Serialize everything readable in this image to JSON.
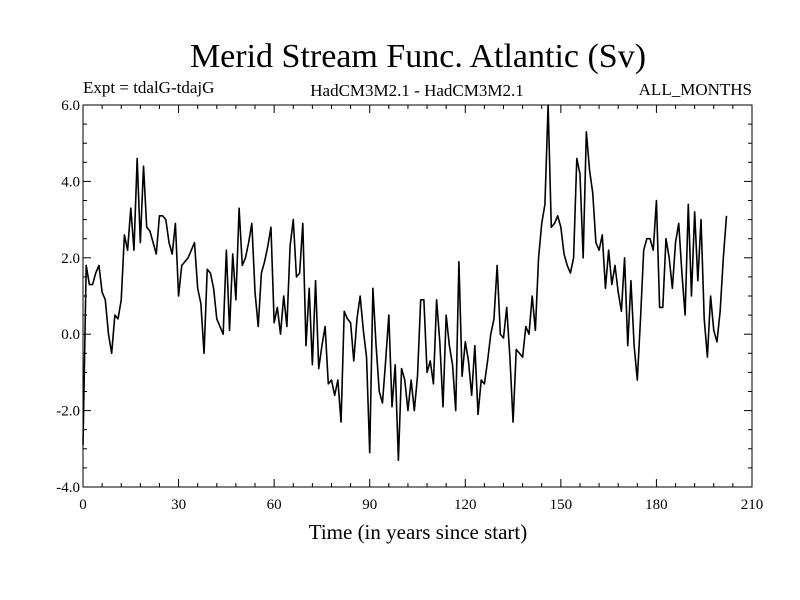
{
  "chart_data": {
    "type": "line",
    "title": "Merid Stream Func. Atlantic (Sv)",
    "subtitle_left": "Expt = tdalG-tdajG",
    "subtitle_center": "HadCM3M2.1 - HadCM3M2.1",
    "subtitle_right": "ALL_MONTHS",
    "xlabel": "Time (in years since start)",
    "ylabel": "",
    "xlim": [
      0,
      210
    ],
    "ylim": [
      -4.0,
      6.0
    ],
    "x_ticks": [
      0,
      30,
      60,
      90,
      120,
      150,
      180,
      210
    ],
    "x_tick_labels": [
      "0",
      "30",
      "60",
      "90",
      "120",
      "150",
      "180",
      "210"
    ],
    "y_ticks": [
      -4.0,
      -2.0,
      0.0,
      2.0,
      4.0,
      6.0
    ],
    "y_tick_labels": [
      "-4.0",
      "-2.0",
      "0.0",
      "2.0",
      "4.0",
      "6.0"
    ],
    "grid": false,
    "series": [
      {
        "name": "tdalG-tdajG",
        "x_start": 0,
        "x_step": 1,
        "values": [
          -2.9,
          1.8,
          1.3,
          1.3,
          1.6,
          1.8,
          1.1,
          0.9,
          0.0,
          -0.5,
          0.5,
          0.4,
          0.9,
          2.6,
          2.2,
          3.3,
          2.2,
          4.6,
          2.4,
          4.4,
          2.8,
          2.7,
          2.4,
          2.1,
          3.1,
          3.1,
          3.0,
          2.4,
          2.1,
          2.9,
          1.0,
          1.8,
          1.9,
          2.0,
          2.2,
          2.4,
          1.2,
          0.8,
          -0.5,
          1.7,
          1.6,
          1.2,
          0.4,
          0.2,
          0.0,
          2.2,
          0.1,
          2.1,
          0.9,
          3.3,
          1.8,
          2.0,
          2.4,
          2.9,
          1.1,
          0.2,
          1.6,
          1.9,
          2.3,
          2.8,
          0.3,
          0.7,
          0.0,
          1.0,
          0.2,
          2.3,
          3.0,
          1.5,
          1.6,
          2.9,
          -0.3,
          1.2,
          -0.8,
          1.4,
          -0.9,
          -0.3,
          0.2,
          -1.3,
          -1.2,
          -1.6,
          -1.2,
          -2.3,
          0.6,
          0.4,
          0.3,
          -0.7,
          0.4,
          1.0,
          0.1,
          -0.6,
          -3.1,
          1.2,
          -0.3,
          -1.5,
          -1.8,
          -0.7,
          0.5,
          -1.9,
          -0.8,
          -3.3,
          -0.9,
          -1.2,
          -2.0,
          -1.2,
          -2.0,
          -1.1,
          0.9,
          0.9,
          -1.0,
          -0.7,
          -1.3,
          0.9,
          -0.2,
          -1.9,
          0.5,
          -0.3,
          -0.8,
          -2.0,
          1.9,
          -1.1,
          -0.2,
          -0.7,
          -1.6,
          -0.3,
          -2.1,
          -1.2,
          -1.3,
          -0.7,
          0.0,
          0.4,
          1.8,
          0.0,
          -0.1,
          0.7,
          -0.6,
          -2.3,
          -0.4,
          -0.5,
          -0.6,
          0.2,
          0.0,
          1.0,
          0.1,
          2.0,
          2.9,
          3.4,
          6.0,
          2.8,
          2.9,
          3.1,
          2.8,
          2.1,
          1.8,
          1.6,
          2.0,
          4.6,
          4.2,
          2.0,
          5.3,
          4.3,
          3.7,
          2.4,
          2.2,
          2.6,
          1.2,
          2.2,
          1.3,
          1.8,
          1.1,
          0.6,
          2.0,
          -0.3,
          1.4,
          -0.3,
          -1.2,
          0.4,
          2.2,
          2.5,
          2.5,
          2.2,
          3.5,
          0.7,
          0.7,
          2.5,
          2.0,
          1.2,
          2.4,
          2.9,
          1.6,
          0.5,
          3.4,
          1.0,
          3.2,
          1.4,
          3.0,
          0.4,
          -0.6,
          1.0,
          0.1,
          -0.2,
          0.6,
          2.0,
          3.1
        ]
      }
    ]
  }
}
